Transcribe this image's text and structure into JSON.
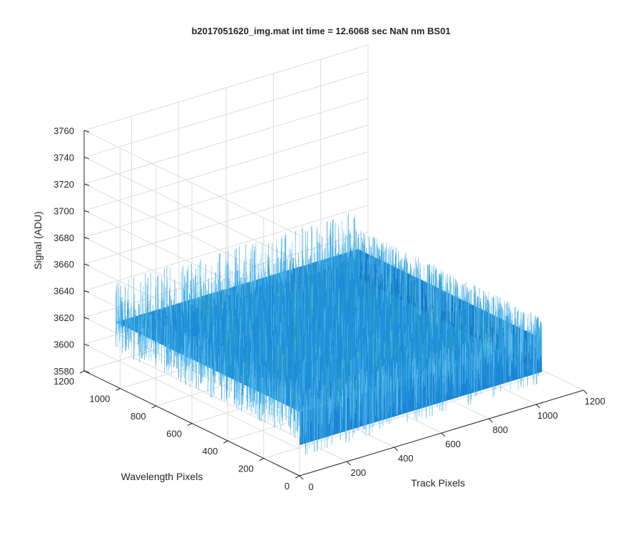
{
  "chart_data": {
    "type": "surface",
    "title": "b2017051620_img.mat int time = 12.6068 sec  NaN nm BS01",
    "xlabel": "Track Pixels",
    "ylabel": "Wavelength Pixels",
    "zlabel": "Signal (ADU)",
    "xlim": [
      0,
      1200
    ],
    "ylim": [
      0,
      1200
    ],
    "zlim": [
      3580,
      3760
    ],
    "xticks": [
      "0",
      "200",
      "400",
      "600",
      "800",
      "1000",
      "1200"
    ],
    "yticks": [
      "0",
      "200",
      "400",
      "600",
      "800",
      "1000",
      "1200"
    ],
    "zticks": [
      "3580",
      "3600",
      "3620",
      "3640",
      "3660",
      "3680",
      "3700",
      "3720",
      "3740",
      "3760"
    ],
    "surface": {
      "x_range": [
        0,
        1024
      ],
      "y_range": [
        0,
        1024
      ],
      "z_mean": 3628,
      "z_min": 3595,
      "z_max": 3690,
      "color": "#1e88d4"
    },
    "grid": true,
    "view": "3d-perspective"
  }
}
